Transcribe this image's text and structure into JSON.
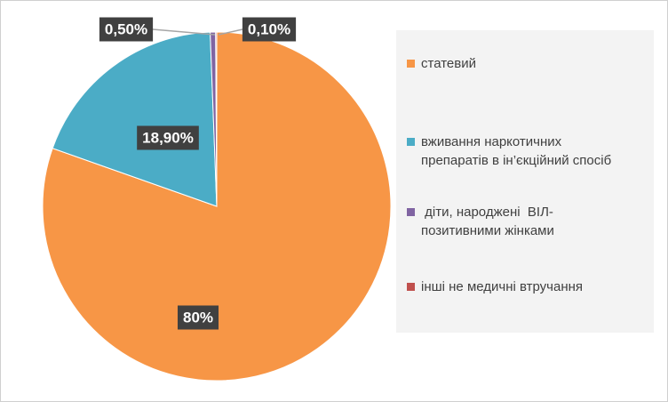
{
  "chart_data": {
    "type": "pie",
    "title": "",
    "slices": [
      {
        "label": "статевий",
        "value": 80,
        "data_label": "80%",
        "color": "#F79646"
      },
      {
        "label": "вживання наркотичних\nпрепаратів в ін’єкційний спосіб",
        "value": 18.9,
        "data_label": "18,90%",
        "color": "#4BACC6"
      },
      {
        "label": " діти, народжені  ВІЛ-\nпозитивними жінками",
        "value": 0.5,
        "data_label": "0,50%",
        "color": "#8064A2"
      },
      {
        "label": "інші не медичні втручання",
        "value": 0.1,
        "data_label": "0,10%",
        "color": "#C0504D"
      }
    ],
    "legend_position": "right",
    "label_box_color": "#404040",
    "label_text_color": "#ffffff",
    "leader_line_color": "#A6A6A6"
  }
}
